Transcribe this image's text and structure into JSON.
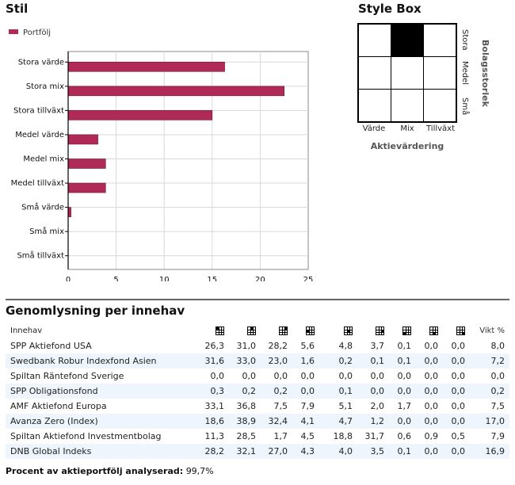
{
  "stil": {
    "title": "Stil"
  },
  "chart_data": {
    "type": "bar",
    "orientation": "horizontal",
    "title": "Stil",
    "categories": [
      "Stora värde",
      "Stora mix",
      "Stora tillväxt",
      "Medel värde",
      "Medel mix",
      "Medel tillväxt",
      "Små värde",
      "Små mix",
      "Små tillväxt"
    ],
    "series": [
      {
        "name": "Portfölj",
        "color": "#b02a58",
        "values": [
          16.3,
          22.5,
          15.0,
          3.1,
          3.9,
          3.9,
          0.3,
          0.0,
          0.0
        ]
      }
    ],
    "xlim": [
      0,
      25
    ],
    "xticks": [
      "0",
      "5",
      "10",
      "15",
      "20",
      "25"
    ],
    "xlabel": "",
    "ylabel": "",
    "grid": true,
    "legend": "top-left"
  },
  "stylebox": {
    "title": "Style Box",
    "filled_cell": {
      "row": "Stora",
      "col": "Mix"
    },
    "col_labels": [
      "Värde",
      "Mix",
      "Tillväxt"
    ],
    "row_labels": [
      "Stora",
      "Medel",
      "Små"
    ],
    "x_axis_title": "Aktievärdering",
    "y_axis_title": "Bolagsstorlek"
  },
  "holdings": {
    "title": "Genomlysning per innehav",
    "name_header": "Innehav",
    "weight_header": "Vikt %",
    "style_columns": [
      {
        "icon": "style-stora-varde-icon",
        "cell": 0
      },
      {
        "icon": "style-stora-mix-icon",
        "cell": 1
      },
      {
        "icon": "style-stora-tillvaxt-icon",
        "cell": 2
      },
      {
        "icon": "style-medel-varde-icon",
        "cell": 3
      },
      {
        "icon": "style-medel-mix-icon",
        "cell": 4
      },
      {
        "icon": "style-medel-tillvaxt-icon",
        "cell": 5
      },
      {
        "icon": "style-sma-varde-icon",
        "cell": 6
      },
      {
        "icon": "style-sma-mix-icon",
        "cell": 7
      },
      {
        "icon": "style-sma-tillvaxt-icon",
        "cell": 8
      }
    ],
    "rows": [
      {
        "name": "SPP Aktiefond USA",
        "values": [
          "26,3",
          "31,0",
          "28,2",
          "5,6",
          "4,8",
          "3,7",
          "0,1",
          "0,0",
          "0,0"
        ],
        "weight": "8,0"
      },
      {
        "name": "Swedbank Robur Indexfond Asien",
        "values": [
          "31,6",
          "33,0",
          "23,0",
          "1,6",
          "0,2",
          "0,1",
          "0,1",
          "0,0",
          "0,0"
        ],
        "weight": "7,2"
      },
      {
        "name": "Spiltan Räntefond Sverige",
        "values": [
          "0,0",
          "0,0",
          "0,0",
          "0,0",
          "0,0",
          "0,0",
          "0,0",
          "0,0",
          "0,0"
        ],
        "weight": "0,0"
      },
      {
        "name": "SPP Obligationsfond",
        "values": [
          "0,3",
          "0,2",
          "0,2",
          "0,0",
          "0,1",
          "0,0",
          "0,0",
          "0,0",
          "0,0"
        ],
        "weight": "0,2"
      },
      {
        "name": "AMF Aktiefond Europa",
        "values": [
          "33,1",
          "36,8",
          "7,5",
          "7,9",
          "5,1",
          "2,0",
          "1,7",
          "0,0",
          "0,0"
        ],
        "weight": "7,5"
      },
      {
        "name": "Avanza Zero (Index)",
        "values": [
          "18,6",
          "38,9",
          "32,4",
          "4,1",
          "4,7",
          "1,2",
          "0,0",
          "0,0",
          "0,0"
        ],
        "weight": "17,0"
      },
      {
        "name": "Spiltan Aktiefond Investmentbolag",
        "values": [
          "11,3",
          "28,5",
          "1,7",
          "4,5",
          "18,8",
          "31,7",
          "0,6",
          "0,9",
          "0,5"
        ],
        "weight": "7,9"
      },
      {
        "name": "DNB Global Indeks",
        "values": [
          "28,2",
          "32,1",
          "27,0",
          "4,3",
          "4,0",
          "3,5",
          "0,1",
          "0,0",
          "0,0"
        ],
        "weight": "16,9"
      }
    ]
  },
  "footer": {
    "label": "Procent av aktieportfölj analyserad",
    "value": "99,7%"
  }
}
